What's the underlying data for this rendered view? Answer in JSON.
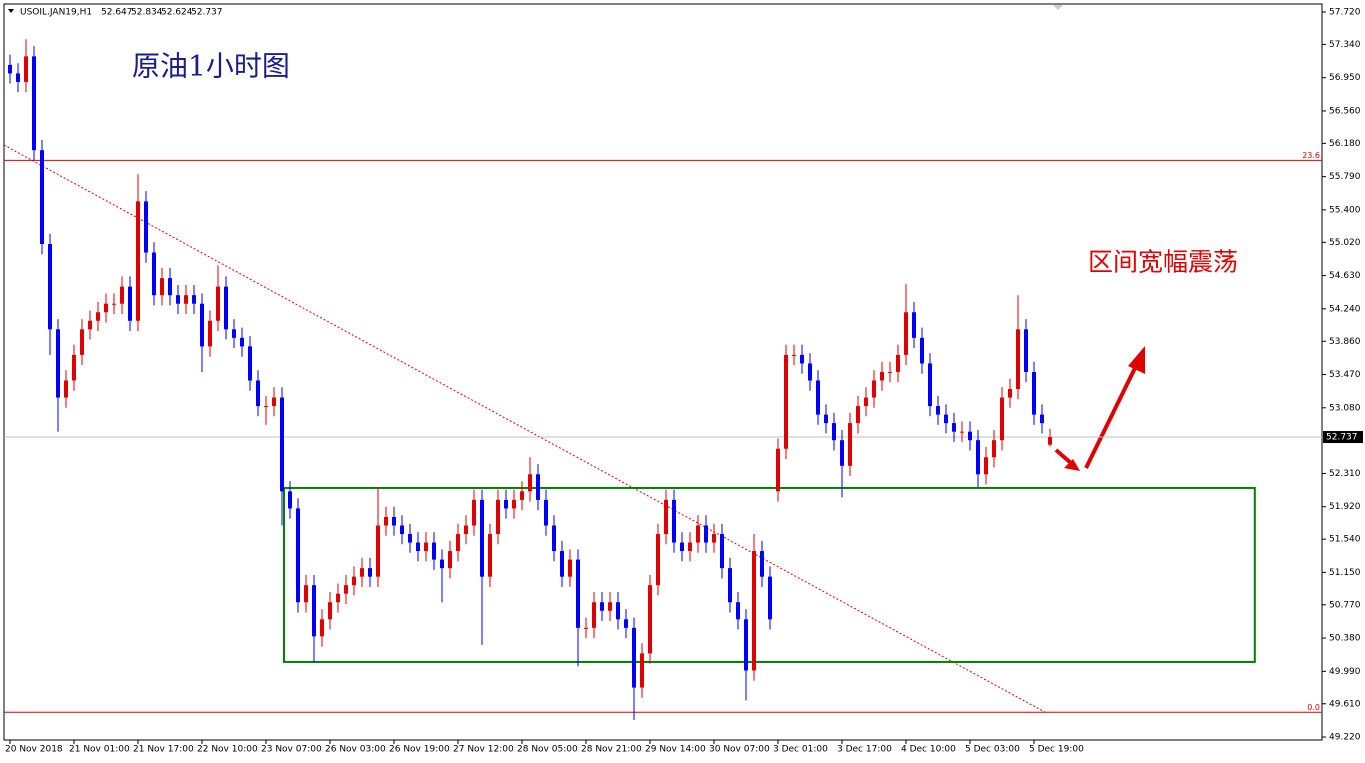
{
  "chart_data": {
    "type": "candlestick",
    "title": "原油1小时图",
    "symbol": "USOIL.JAN19,H1",
    "annotation": "区间宽幅震荡",
    "categories": [
      "20 Nov 2018",
      null,
      null,
      null,
      null,
      null,
      null,
      null,
      "21 Nov 01:00",
      null,
      null,
      null,
      null,
      null,
      null,
      null,
      "21 Nov 17:00",
      null,
      null,
      null,
      null,
      null,
      null,
      null,
      "22 Nov 10:00",
      null,
      null,
      null,
      null,
      null,
      null,
      null,
      "23 Nov 07:00",
      null,
      null,
      null,
      null,
      null,
      null,
      null,
      "26 Nov 03:00",
      null,
      null,
      null,
      null,
      null,
      null,
      null,
      "26 Nov 19:00",
      null,
      null,
      null,
      null,
      null,
      null,
      null,
      "27 Nov 12:00",
      null,
      null,
      null,
      null,
      null,
      null,
      null,
      "28 Nov 05:00",
      null,
      null,
      null,
      null,
      null,
      null,
      null,
      "28 Nov 21:00",
      null,
      null,
      null,
      null,
      null,
      null,
      null,
      "29 Nov 14:00",
      null,
      null,
      null,
      null,
      null,
      null,
      null,
      "30 Nov 07:00",
      null,
      null,
      null,
      null,
      null,
      null,
      null,
      "3 Dec 01:00",
      null,
      null,
      null,
      null,
      null,
      null,
      null,
      "3 Dec 17:00",
      null,
      null,
      null,
      null,
      null,
      null,
      null,
      "4 Dec 10:00",
      null,
      null,
      null,
      null,
      null,
      null,
      null,
      "5 Dec 03:00",
      null,
      null,
      null,
      null,
      null,
      null,
      null,
      "5 Dec 19:00",
      null,
      null
    ],
    "open": [
      57.1,
      57.0,
      56.9,
      57.2,
      56.1,
      55.0,
      54.0,
      53.2,
      53.4,
      53.7,
      54.0,
      54.1,
      54.2,
      54.3,
      54.3,
      54.5,
      54.1,
      55.5,
      54.9,
      54.4,
      54.6,
      54.4,
      54.3,
      54.4,
      54.3,
      53.8,
      54.1,
      54.5,
      54.0,
      53.9,
      53.8,
      53.4,
      53.1,
      53.1,
      53.2,
      52.1,
      51.9,
      50.8,
      51.0,
      50.4,
      50.6,
      50.8,
      50.9,
      51.0,
      51.1,
      51.2,
      51.1,
      51.7,
      51.8,
      51.7,
      51.6,
      51.5,
      51.4,
      51.5,
      51.3,
      51.2,
      51.4,
      51.6,
      51.7,
      52.0,
      51.1,
      51.6,
      52.0,
      51.9,
      52.0,
      52.1,
      52.3,
      52.0,
      51.7,
      51.4,
      51.1,
      51.3,
      50.5,
      50.5,
      50.8,
      50.7,
      50.8,
      50.6,
      50.5,
      49.8,
      50.2,
      51.0,
      51.6,
      52.0,
      51.5,
      51.4,
      51.5,
      51.7,
      51.5,
      51.6,
      51.2,
      50.8,
      50.6,
      50.0,
      51.4,
      51.1,
      52.1,
      52.6,
      53.7,
      53.7,
      53.6,
      53.4,
      53.0,
      52.9,
      52.7,
      52.4,
      52.9,
      53.1,
      53.2,
      53.4,
      53.5,
      53.5,
      53.7,
      54.2,
      53.9,
      53.6,
      53.1,
      53.0,
      52.9,
      52.8,
      52.8,
      52.7,
      52.3,
      52.5,
      52.7,
      53.2,
      53.3,
      54.0,
      53.5,
      53.0,
      52.647
    ],
    "high": [
      57.22,
      57.12,
      57.4,
      57.32,
      56.22,
      55.12,
      54.12,
      53.52,
      53.82,
      54.12,
      54.22,
      54.32,
      54.42,
      54.42,
      54.62,
      54.62,
      55.82,
      55.62,
      55.02,
      54.72,
      54.72,
      54.52,
      54.52,
      54.52,
      54.42,
      54.22,
      54.75,
      54.62,
      54.12,
      54.02,
      53.92,
      53.52,
      53.22,
      53.32,
      53.32,
      52.22,
      52.02,
      51.12,
      51.12,
      50.72,
      50.92,
      51.02,
      51.12,
      51.22,
      51.32,
      51.32,
      52.15,
      51.92,
      51.92,
      51.82,
      51.72,
      51.62,
      51.62,
      51.62,
      51.42,
      51.52,
      51.72,
      51.82,
      52.12,
      52.12,
      51.72,
      52.12,
      52.12,
      52.12,
      52.22,
      52.5,
      52.42,
      52.12,
      51.82,
      51.52,
      51.42,
      51.42,
      50.62,
      50.92,
      50.92,
      50.92,
      50.92,
      50.72,
      50.62,
      50.32,
      51.12,
      51.72,
      52.12,
      52.12,
      51.62,
      51.62,
      51.82,
      51.82,
      51.72,
      51.72,
      51.32,
      50.92,
      50.72,
      51.6,
      51.52,
      51.22,
      52.72,
      53.82,
      53.82,
      53.82,
      53.72,
      53.52,
      53.12,
      53.02,
      52.82,
      53.02,
      53.22,
      53.32,
      53.52,
      53.62,
      53.62,
      53.82,
      54.53,
      54.32,
      54.02,
      53.72,
      53.22,
      53.12,
      53.02,
      52.92,
      52.92,
      52.82,
      52.62,
      52.82,
      53.32,
      53.42,
      54.4,
      54.12,
      53.62,
      53.12,
      52.834
    ],
    "low": [
      56.88,
      56.78,
      56.78,
      55.98,
      54.88,
      53.7,
      52.8,
      53.08,
      53.28,
      53.58,
      53.88,
      53.98,
      54.08,
      54.18,
      54.18,
      53.98,
      53.98,
      54.78,
      54.28,
      54.28,
      54.28,
      54.18,
      54.18,
      54.18,
      53.5,
      53.68,
      53.98,
      53.88,
      53.78,
      53.68,
      53.28,
      52.98,
      52.88,
      52.98,
      51.7,
      51.78,
      50.68,
      50.68,
      50.1,
      50.28,
      50.48,
      50.68,
      50.78,
      50.88,
      50.98,
      50.98,
      50.98,
      51.58,
      51.58,
      51.48,
      51.38,
      51.28,
      51.28,
      51.18,
      50.8,
      51.08,
      51.28,
      51.48,
      51.58,
      50.3,
      50.98,
      51.48,
      51.78,
      51.78,
      51.88,
      51.98,
      51.88,
      51.58,
      51.28,
      50.98,
      50.98,
      50.05,
      50.38,
      50.38,
      50.58,
      50.58,
      50.48,
      50.38,
      49.42,
      49.68,
      50.08,
      50.88,
      51.48,
      51.38,
      51.28,
      51.28,
      51.38,
      51.38,
      51.38,
      51.08,
      50.68,
      50.48,
      49.65,
      49.88,
      50.98,
      50.48,
      51.98,
      52.48,
      53.58,
      53.48,
      53.28,
      52.88,
      52.78,
      52.58,
      52.03,
      52.28,
      52.78,
      52.98,
      53.08,
      53.28,
      53.38,
      53.38,
      53.58,
      53.78,
      53.48,
      52.98,
      52.88,
      52.78,
      52.68,
      52.68,
      52.58,
      52.15,
      52.18,
      52.38,
      52.58,
      53.08,
      53.18,
      53.38,
      52.88,
      52.78,
      52.624
    ],
    "close": [
      57.0,
      56.9,
      57.2,
      56.1,
      55.0,
      54.0,
      53.2,
      53.4,
      53.7,
      54.0,
      54.1,
      54.2,
      54.3,
      54.3,
      54.5,
      54.1,
      55.5,
      54.9,
      54.4,
      54.6,
      54.4,
      54.3,
      54.4,
      54.3,
      53.8,
      54.1,
      54.5,
      54.0,
      53.9,
      53.8,
      53.4,
      53.1,
      53.1,
      53.2,
      52.1,
      51.9,
      50.8,
      51.0,
      50.4,
      50.6,
      50.8,
      50.9,
      51.0,
      51.1,
      51.2,
      51.1,
      51.7,
      51.8,
      51.7,
      51.6,
      51.5,
      51.4,
      51.5,
      51.3,
      51.2,
      51.4,
      51.6,
      51.7,
      52.0,
      51.1,
      51.6,
      52.0,
      51.9,
      52.0,
      52.1,
      52.3,
      52.0,
      51.7,
      51.4,
      51.1,
      51.3,
      50.5,
      50.5,
      50.8,
      50.7,
      50.8,
      50.6,
      50.5,
      49.8,
      50.2,
      51.0,
      51.6,
      52.0,
      51.5,
      51.4,
      51.5,
      51.7,
      51.5,
      51.6,
      51.2,
      50.8,
      50.6,
      50.0,
      51.4,
      51.1,
      50.6,
      52.6,
      53.7,
      53.7,
      53.6,
      53.4,
      53.0,
      52.9,
      52.7,
      52.4,
      52.9,
      53.1,
      53.2,
      53.4,
      53.5,
      53.5,
      53.7,
      54.2,
      53.9,
      53.6,
      53.1,
      53.0,
      52.9,
      52.8,
      52.8,
      52.7,
      52.3,
      52.5,
      52.7,
      53.2,
      53.3,
      54.0,
      53.5,
      53.0,
      52.9,
      52.737
    ],
    "up_color": "#e00000",
    "down_color": "#0000ff",
    "ylim": [
      49.185,
      57.814
    ],
    "yticks": [
      {
        "value": 57.72,
        "label": "57.720"
      },
      {
        "value": 57.34,
        "label": "57.340"
      },
      {
        "value": 56.95,
        "label": "56.950"
      },
      {
        "value": 56.56,
        "label": "56.560"
      },
      {
        "value": 56.18,
        "label": "56.180"
      },
      {
        "value": 55.79,
        "label": "55.790"
      },
      {
        "value": 55.4,
        "label": "55.400"
      },
      {
        "value": 55.02,
        "label": "55.020"
      },
      {
        "value": 54.63,
        "label": "54.630"
      },
      {
        "value": 54.24,
        "label": "54.240"
      },
      {
        "value": 53.86,
        "label": "53.860"
      },
      {
        "value": 53.47,
        "label": "53.470"
      },
      {
        "value": 53.08,
        "label": "53.080"
      },
      {
        "value": 52.31,
        "label": "52.310"
      },
      {
        "value": 51.92,
        "label": "51.920"
      },
      {
        "value": 51.54,
        "label": "51.540"
      },
      {
        "value": 51.15,
        "label": "51.150"
      },
      {
        "value": 50.77,
        "label": "50.770"
      },
      {
        "value": 50.38,
        "label": "50.380"
      },
      {
        "value": 49.99,
        "label": "49.990"
      },
      {
        "value": 49.61,
        "label": "49.610"
      },
      {
        "value": 49.22,
        "label": "49.220"
      }
    ],
    "fibo": [
      {
        "label": "23.6",
        "y": 55.98
      },
      {
        "label": "0.0",
        "y": 49.51
      }
    ],
    "trendline": {
      "x": [
        -0.75,
        129.4
      ],
      "y": [
        56.16,
        49.51
      ]
    },
    "box": {
      "x": [
        34.25,
        155.6
      ],
      "y": [
        52.14,
        50.1
      ]
    }
  }
}
